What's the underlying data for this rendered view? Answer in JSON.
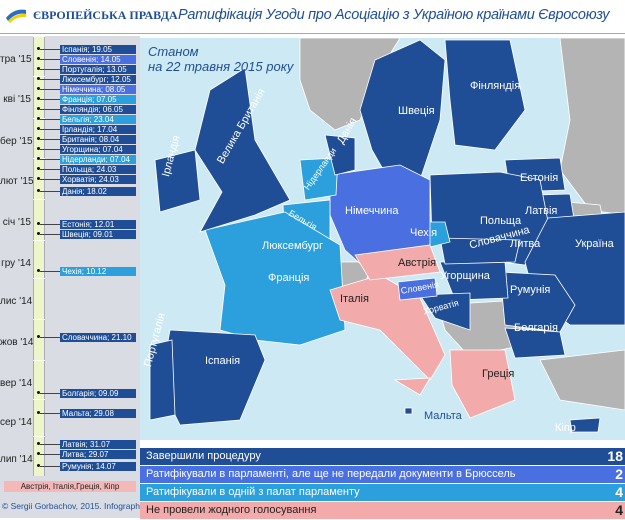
{
  "header": {
    "brand": "ЄВРОПЕЙСЬКА ПРАВДА",
    "title": "Ратифікація Угоди про Асоціацію з Україною країнами Євросоюзу"
  },
  "colors": {
    "completed": "#1f4e96",
    "ratified_not_deposited": "#4a6fe0",
    "one_chamber": "#2ba0dd",
    "no_vote": "#f2aaaa",
    "non_eu": "#b4b4b4",
    "sea": "#cdeaf4"
  },
  "timeline": {
    "months": [
      "тра '15",
      "кві '15",
      "бер '15",
      "лют '15",
      "січ '15",
      "гру '14",
      "лис '14",
      "жов '14",
      "вер '14",
      "сер '14",
      "лип '14"
    ],
    "events": [
      {
        "label": "Іспанія; 19.05",
        "status": "completed"
      },
      {
        "label": "Словенія; 14.05",
        "status": "ratified_not_deposited"
      },
      {
        "label": "Португалія; 13.05",
        "status": "completed"
      },
      {
        "label": "Люксембург; 12.05",
        "status": "completed"
      },
      {
        "label": "Німеччина; 08.05",
        "status": "ratified_not_deposited"
      },
      {
        "label": "Франція; 07.05",
        "status": "one_chamber"
      },
      {
        "label": "Фінляндія; 06.05",
        "status": "completed"
      },
      {
        "label": "Бельгія; 23.04",
        "status": "one_chamber"
      },
      {
        "label": "Ірландія; 17.04",
        "status": "completed"
      },
      {
        "label": "Британія; 08.04",
        "status": "completed"
      },
      {
        "label": "Угорщина; 07.04",
        "status": "completed"
      },
      {
        "label": "Нідерланди; 07.04",
        "status": "one_chamber"
      },
      {
        "label": "Польща; 24.03",
        "status": "completed"
      },
      {
        "label": "Хорватія; 24.03",
        "status": "completed"
      },
      {
        "label": "Данія; 18.02",
        "status": "completed"
      },
      {
        "label": "Естонія; 12.01",
        "status": "completed"
      },
      {
        "label": "Швеція; 09.01",
        "status": "completed"
      },
      {
        "label": "Чехія; 10.12",
        "status": "one_chamber"
      },
      {
        "label": "Словаччина; 21.10",
        "status": "completed"
      },
      {
        "label": "Болгарія; 09.09",
        "status": "completed"
      },
      {
        "label": "Мальта; 29.08",
        "status": "completed"
      },
      {
        "label": "Латвія; 31.07",
        "status": "completed"
      },
      {
        "label": "Литва; 29.07",
        "status": "completed"
      },
      {
        "label": "Румунія; 14.07",
        "status": "completed"
      }
    ],
    "not_voted": "Австрія, Італія,Греція, Кіпр"
  },
  "copyright": "© Sergii Gorbachov, 2015. Infographics",
  "map": {
    "as_of": [
      "Станом",
      "на 22 травня 2015 року"
    ],
    "countries": {
      "ireland": "Ірландія",
      "uk": "Велика Британія",
      "denmark": "Данія",
      "sweden": "Швеція",
      "finland": "Фінляндія",
      "estonia": "Естонія",
      "latvia": "Латвія",
      "lithuania": "Литва",
      "poland": "Польща",
      "netherlands": "Нідерланди",
      "belgium": "Бельгія",
      "luxembourg": "Люксембург",
      "germany": "Німеччина",
      "czechia": "Чехія",
      "slovakia": "Словаччина",
      "ukraine": "Україна",
      "austria": "Австрія",
      "hungary": "Угорщина",
      "france": "Франція",
      "slovenia": "Словенія",
      "croatia": "Хорватія",
      "romania": "Румунія",
      "italy": "Італія",
      "bulgaria": "Болгарія",
      "portugal": "Португалія",
      "spain": "Іспанія",
      "greece": "Греція",
      "malta": "Мальта",
      "cyprus": "Кіпр"
    }
  },
  "legend": [
    {
      "label": "Завершили процедуру",
      "count": "18",
      "status": "completed"
    },
    {
      "label": "Ратифікували в парламенті, але ще не передали документи  в Брюссель",
      "count": "2",
      "status": "ratified_not_deposited"
    },
    {
      "label": "Ратифікували в одній з палат парламенту",
      "count": "4",
      "status": "one_chamber"
    },
    {
      "label": "Не провели жодного голосування",
      "count": "4",
      "status": "no_vote"
    }
  ]
}
